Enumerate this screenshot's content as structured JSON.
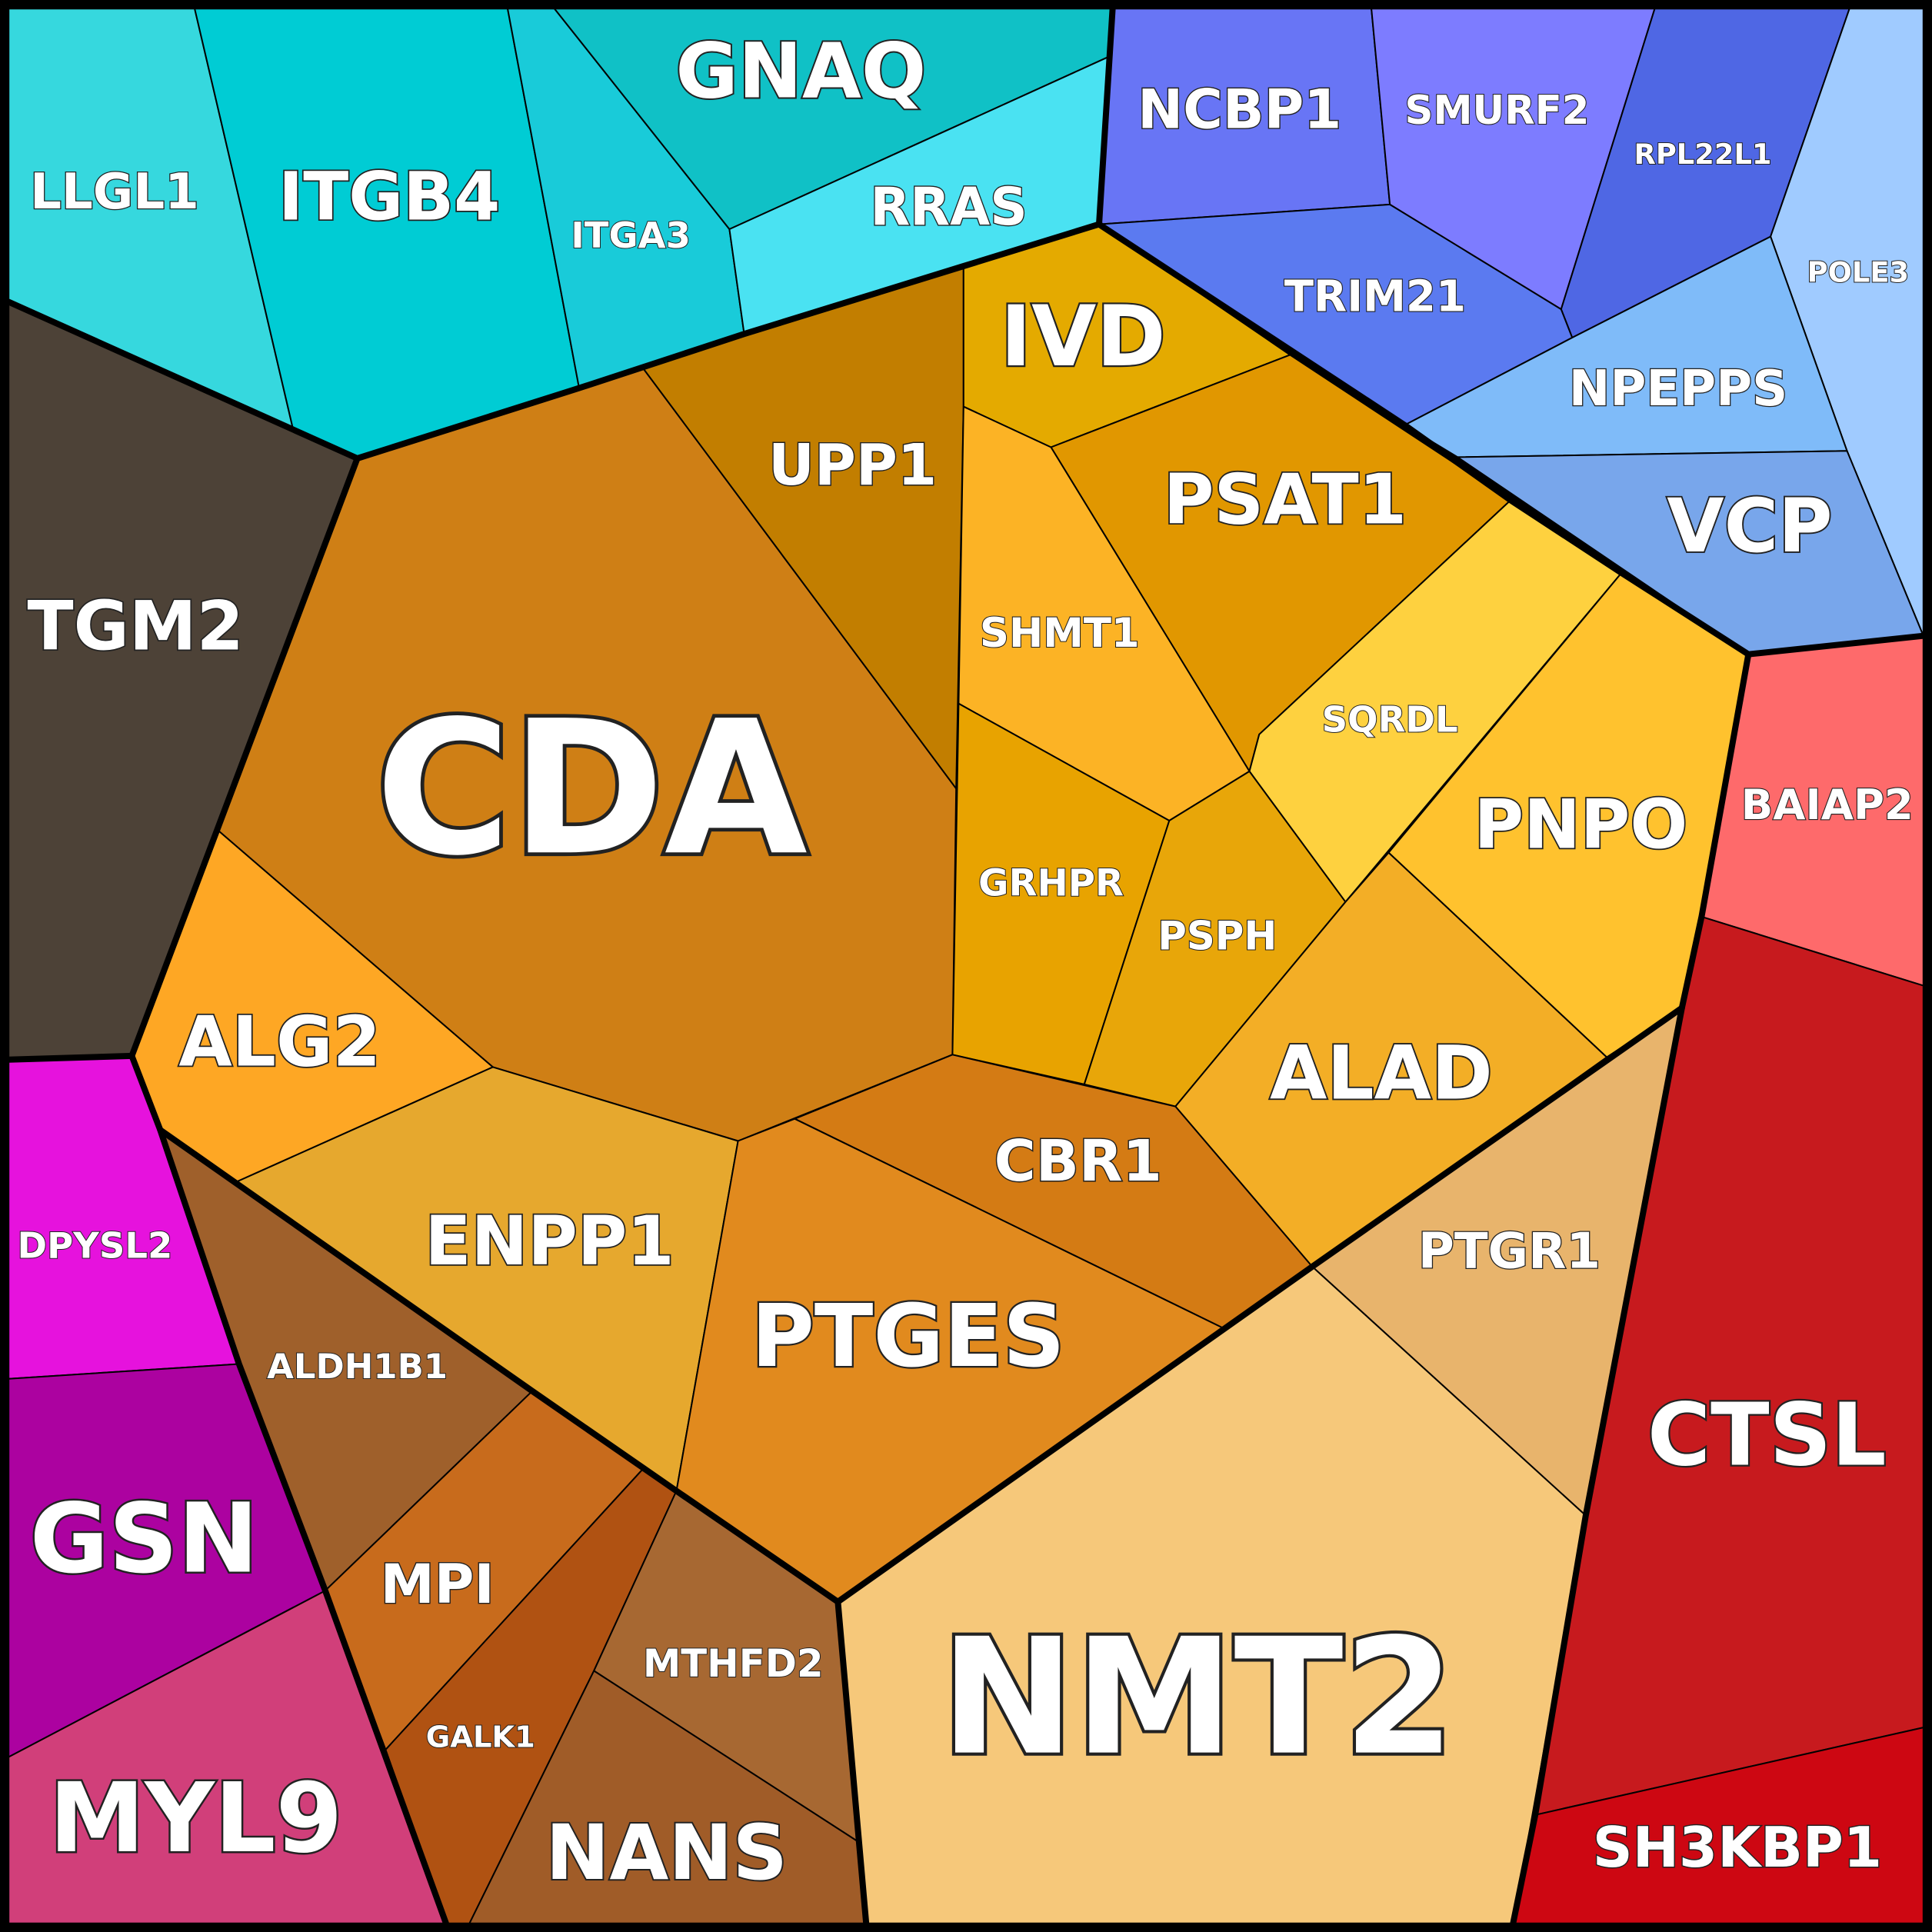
{
  "chart_data": {
    "type": "voronoi_treemap",
    "cells": [
      {
        "name": "LLGL1",
        "color": "#36d8de"
      },
      {
        "name": "ITGB4",
        "color": "#00ccd4"
      },
      {
        "name": "ITGA3",
        "color": "#19cbd9"
      },
      {
        "name": "GNAQ",
        "color": "#10c1c6"
      },
      {
        "name": "RRAS",
        "color": "#4ae2f2"
      },
      {
        "name": "NCBP1",
        "color": "#6875f5"
      },
      {
        "name": "SMURF2",
        "color": "#7d7cff"
      },
      {
        "name": "RPL22L1",
        "color": "#4f67e4"
      },
      {
        "name": "POLE3",
        "color": "#a0cbff"
      },
      {
        "name": "TRIM21",
        "color": "#5b7af0"
      },
      {
        "name": "NPEPPS",
        "color": "#7fbbf9"
      },
      {
        "name": "VCP",
        "color": "#78a6eb"
      },
      {
        "name": "TGM2",
        "color": "#4d4237"
      },
      {
        "name": "CDA",
        "color": "#cf7f15"
      },
      {
        "name": "UPP1",
        "color": "#c27e00"
      },
      {
        "name": "IVD",
        "color": "#e4aa00"
      },
      {
        "name": "PSAT1",
        "color": "#e19700"
      },
      {
        "name": "SHMT1",
        "color": "#fcb325"
      },
      {
        "name": "SQRDL",
        "color": "#fed13f"
      },
      {
        "name": "PNPO",
        "color": "#ffc22e"
      },
      {
        "name": "GRHPR",
        "color": "#e8a300"
      },
      {
        "name": "PSPH",
        "color": "#e8a609"
      },
      {
        "name": "ALAD",
        "color": "#f3ae26"
      },
      {
        "name": "ALG2",
        "color": "#fea724"
      },
      {
        "name": "ENPP1",
        "color": "#e6a82e"
      },
      {
        "name": "CBR1",
        "color": "#d47b14"
      },
      {
        "name": "PTGES",
        "color": "#e18a1e"
      },
      {
        "name": "PTGR1",
        "color": "#e8b46c"
      },
      {
        "name": "NMT2",
        "color": "#f6c87a"
      },
      {
        "name": "BAIAP2",
        "color": "#fe6a6b"
      },
      {
        "name": "CTSL",
        "color": "#c71a1e"
      },
      {
        "name": "SH3KBP1",
        "color": "#cd0712"
      },
      {
        "name": "DPYSL2",
        "color": "#e612dd"
      },
      {
        "name": "ALDH1B1",
        "color": "#9f602b"
      },
      {
        "name": "GSN",
        "color": "#ac02a0"
      },
      {
        "name": "MPI",
        "color": "#c86b1c"
      },
      {
        "name": "GALK1",
        "color": "#b05212"
      },
      {
        "name": "MTHFD2",
        "color": "#a76832"
      },
      {
        "name": "NANS",
        "color": "#a05c28"
      },
      {
        "name": "MYL9",
        "color": "#d13f7a"
      }
    ]
  }
}
